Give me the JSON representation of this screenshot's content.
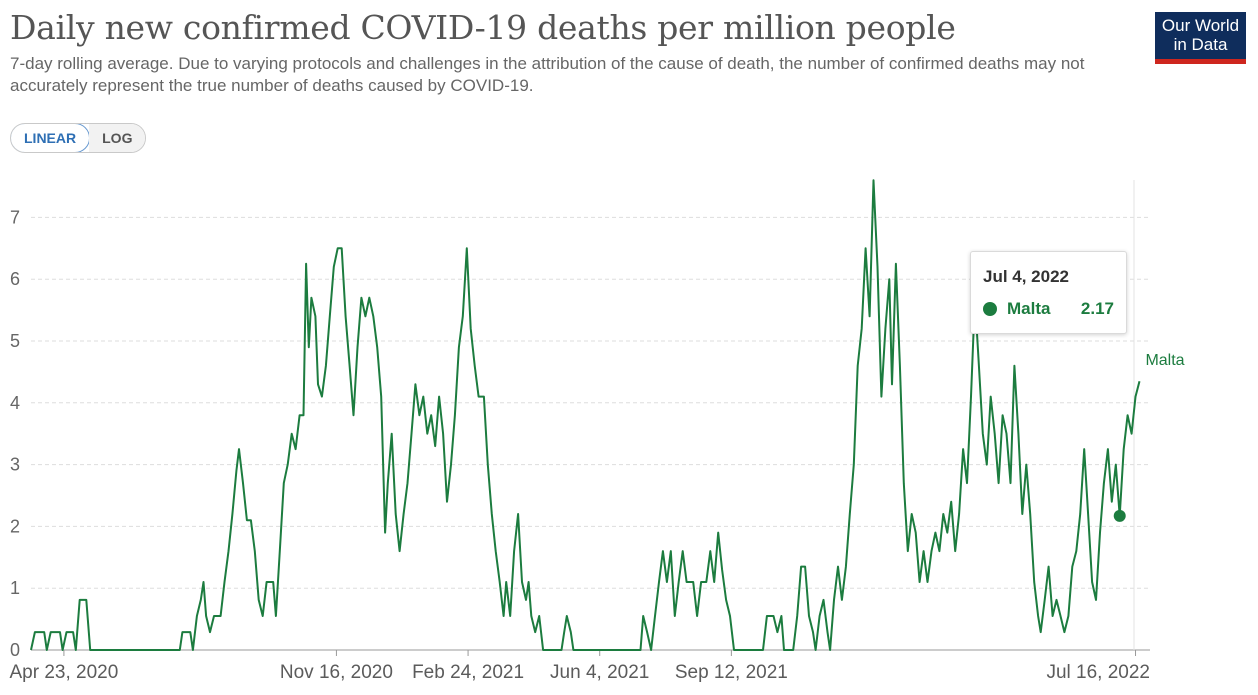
{
  "header": {
    "title": "Daily new confirmed COVID-19 deaths per million people",
    "subtitle": "7-day rolling average. Due to varying protocols and challenges in the attribution of the cause of death, the number of confirmed deaths may not accurately represent the true number of deaths caused by COVID-19.",
    "logo_line1": "Our World",
    "logo_line2": "in Data"
  },
  "scale_toggle": {
    "linear": "LINEAR",
    "log": "LOG",
    "selected": "LINEAR"
  },
  "colors": {
    "series": "#1c7c3f",
    "logo_bg": "#0f2d5c",
    "logo_accent": "#ce261e",
    "grid": "#dddddd"
  },
  "tooltip": {
    "date": "Jul 4, 2022",
    "entity": "Malta",
    "value": "2.17"
  },
  "chart_data": {
    "type": "line",
    "title": "Daily new confirmed COVID-19 deaths per million people",
    "xlabel": "",
    "ylabel": "",
    "xlim": [
      "2020-03-29",
      "2022-07-27"
    ],
    "ylim": [
      0,
      7.6
    ],
    "y_ticks": [
      0,
      1,
      2,
      3,
      4,
      5,
      6,
      7
    ],
    "x_ticks": [
      {
        "date": "2020-04-23",
        "label": "Apr 23, 2020"
      },
      {
        "date": "2020-11-16",
        "label": "Nov 16, 2020"
      },
      {
        "date": "2021-02-24",
        "label": "Feb 24, 2021"
      },
      {
        "date": "2021-06-04",
        "label": "Jun 4, 2021"
      },
      {
        "date": "2021-09-12",
        "label": "Sep 12, 2021"
      },
      {
        "date": "2022-07-16",
        "label": "Jul 16, 2022"
      }
    ],
    "grid": true,
    "legend": "inline-right",
    "highlight": {
      "date": "2022-07-04",
      "value": 2.17
    },
    "series": [
      {
        "name": "Malta",
        "points": [
          [
            "2020-03-29",
            0
          ],
          [
            "2020-04-01",
            0.29
          ],
          [
            "2020-04-08",
            0.29
          ],
          [
            "2020-04-10",
            0
          ],
          [
            "2020-04-13",
            0.29
          ],
          [
            "2020-04-20",
            0.29
          ],
          [
            "2020-04-22",
            0
          ],
          [
            "2020-04-25",
            0.29
          ],
          [
            "2020-04-30",
            0.29
          ],
          [
            "2020-05-02",
            0
          ],
          [
            "2020-05-05",
            0.81
          ],
          [
            "2020-05-10",
            0.81
          ],
          [
            "2020-05-13",
            0
          ],
          [
            "2020-07-20",
            0
          ],
          [
            "2020-07-22",
            0.29
          ],
          [
            "2020-07-28",
            0.29
          ],
          [
            "2020-07-30",
            0
          ],
          [
            "2020-08-02",
            0.55
          ],
          [
            "2020-08-05",
            0.81
          ],
          [
            "2020-08-07",
            1.1
          ],
          [
            "2020-08-09",
            0.55
          ],
          [
            "2020-08-12",
            0.29
          ],
          [
            "2020-08-15",
            0.55
          ],
          [
            "2020-08-20",
            0.55
          ],
          [
            "2020-08-23",
            1.1
          ],
          [
            "2020-08-26",
            1.6
          ],
          [
            "2020-08-29",
            2.2
          ],
          [
            "2020-09-01",
            2.9
          ],
          [
            "2020-09-03",
            3.25
          ],
          [
            "2020-09-06",
            2.7
          ],
          [
            "2020-09-09",
            2.1
          ],
          [
            "2020-09-12",
            2.1
          ],
          [
            "2020-09-15",
            1.6
          ],
          [
            "2020-09-18",
            0.81
          ],
          [
            "2020-09-21",
            0.55
          ],
          [
            "2020-09-24",
            1.1
          ],
          [
            "2020-09-29",
            1.1
          ],
          [
            "2020-10-01",
            0.55
          ],
          [
            "2020-10-04",
            1.6
          ],
          [
            "2020-10-07",
            2.7
          ],
          [
            "2020-10-10",
            3.0
          ],
          [
            "2020-10-13",
            3.5
          ],
          [
            "2020-10-16",
            3.25
          ],
          [
            "2020-10-19",
            3.8
          ],
          [
            "2020-10-22",
            3.8
          ],
          [
            "2020-10-24",
            6.25
          ],
          [
            "2020-10-26",
            4.9
          ],
          [
            "2020-10-28",
            5.7
          ],
          [
            "2020-10-31",
            5.4
          ],
          [
            "2020-11-02",
            4.3
          ],
          [
            "2020-11-05",
            4.1
          ],
          [
            "2020-11-08",
            4.6
          ],
          [
            "2020-11-11",
            5.4
          ],
          [
            "2020-11-14",
            6.2
          ],
          [
            "2020-11-17",
            6.5
          ],
          [
            "2020-11-20",
            6.5
          ],
          [
            "2020-11-23",
            5.4
          ],
          [
            "2020-11-26",
            4.6
          ],
          [
            "2020-11-29",
            3.8
          ],
          [
            "2020-12-02",
            4.9
          ],
          [
            "2020-12-05",
            5.7
          ],
          [
            "2020-12-08",
            5.4
          ],
          [
            "2020-12-11",
            5.7
          ],
          [
            "2020-12-14",
            5.4
          ],
          [
            "2020-12-17",
            4.9
          ],
          [
            "2020-12-20",
            4.1
          ],
          [
            "2020-12-23",
            1.9
          ],
          [
            "2020-12-25",
            2.7
          ],
          [
            "2020-12-28",
            3.5
          ],
          [
            "2020-12-31",
            2.2
          ],
          [
            "2021-01-03",
            1.6
          ],
          [
            "2021-01-06",
            2.2
          ],
          [
            "2021-01-09",
            2.7
          ],
          [
            "2021-01-12",
            3.5
          ],
          [
            "2021-01-15",
            4.3
          ],
          [
            "2021-01-18",
            3.8
          ],
          [
            "2021-01-21",
            4.1
          ],
          [
            "2021-01-24",
            3.5
          ],
          [
            "2021-01-27",
            3.8
          ],
          [
            "2021-01-30",
            3.3
          ],
          [
            "2021-02-02",
            4.1
          ],
          [
            "2021-02-05",
            3.5
          ],
          [
            "2021-02-08",
            2.4
          ],
          [
            "2021-02-11",
            3.0
          ],
          [
            "2021-02-14",
            3.8
          ],
          [
            "2021-02-17",
            4.9
          ],
          [
            "2021-02-20",
            5.4
          ],
          [
            "2021-02-23",
            6.5
          ],
          [
            "2021-02-26",
            5.2
          ],
          [
            "2021-03-01",
            4.6
          ],
          [
            "2021-03-04",
            4.1
          ],
          [
            "2021-03-08",
            4.1
          ],
          [
            "2021-03-11",
            3.0
          ],
          [
            "2021-03-14",
            2.2
          ],
          [
            "2021-03-17",
            1.6
          ],
          [
            "2021-03-20",
            1.1
          ],
          [
            "2021-03-23",
            0.55
          ],
          [
            "2021-03-25",
            1.1
          ],
          [
            "2021-03-28",
            0.55
          ],
          [
            "2021-03-31",
            1.6
          ],
          [
            "2021-04-03",
            2.2
          ],
          [
            "2021-04-06",
            1.1
          ],
          [
            "2021-04-09",
            0.81
          ],
          [
            "2021-04-11",
            1.1
          ],
          [
            "2021-04-13",
            0.55
          ],
          [
            "2021-04-16",
            0.29
          ],
          [
            "2021-04-19",
            0.55
          ],
          [
            "2021-04-22",
            0
          ],
          [
            "2021-05-06",
            0
          ],
          [
            "2021-05-08",
            0.29
          ],
          [
            "2021-05-10",
            0.55
          ],
          [
            "2021-05-13",
            0.29
          ],
          [
            "2021-05-15",
            0
          ],
          [
            "2021-07-05",
            0
          ],
          [
            "2021-07-07",
            0.55
          ],
          [
            "2021-07-10",
            0.29
          ],
          [
            "2021-07-13",
            0
          ],
          [
            "2021-07-16",
            0.55
          ],
          [
            "2021-07-19",
            1.1
          ],
          [
            "2021-07-22",
            1.6
          ],
          [
            "2021-07-25",
            1.1
          ],
          [
            "2021-07-28",
            1.6
          ],
          [
            "2021-07-31",
            0.55
          ],
          [
            "2021-08-03",
            1.1
          ],
          [
            "2021-08-06",
            1.6
          ],
          [
            "2021-08-09",
            1.1
          ],
          [
            "2021-08-14",
            1.1
          ],
          [
            "2021-08-17",
            0.55
          ],
          [
            "2021-08-20",
            1.1
          ],
          [
            "2021-08-24",
            1.1
          ],
          [
            "2021-08-27",
            1.6
          ],
          [
            "2021-08-30",
            1.1
          ],
          [
            "2021-09-02",
            1.9
          ],
          [
            "2021-09-05",
            1.3
          ],
          [
            "2021-09-08",
            0.81
          ],
          [
            "2021-09-11",
            0.55
          ],
          [
            "2021-09-14",
            0
          ],
          [
            "2021-10-06",
            0
          ],
          [
            "2021-10-09",
            0.55
          ],
          [
            "2021-10-14",
            0.55
          ],
          [
            "2021-10-17",
            0.29
          ],
          [
            "2021-10-20",
            0.55
          ],
          [
            "2021-10-22",
            0
          ],
          [
            "2021-10-29",
            0
          ],
          [
            "2021-11-01",
            0.55
          ],
          [
            "2021-11-04",
            1.35
          ],
          [
            "2021-11-07",
            1.35
          ],
          [
            "2021-11-10",
            0.55
          ],
          [
            "2021-11-13",
            0.29
          ],
          [
            "2021-11-15",
            0
          ],
          [
            "2021-11-18",
            0.55
          ],
          [
            "2021-11-21",
            0.81
          ],
          [
            "2021-11-24",
            0.29
          ],
          [
            "2021-11-26",
            0
          ],
          [
            "2021-11-29",
            0.81
          ],
          [
            "2021-12-02",
            1.35
          ],
          [
            "2021-12-05",
            0.81
          ],
          [
            "2021-12-08",
            1.35
          ],
          [
            "2021-12-11",
            2.2
          ],
          [
            "2021-12-14",
            3.0
          ],
          [
            "2021-12-17",
            4.6
          ],
          [
            "2021-12-20",
            5.2
          ],
          [
            "2021-12-23",
            6.5
          ],
          [
            "2021-12-26",
            5.4
          ],
          [
            "2021-12-29",
            7.6
          ],
          [
            "2022-01-01",
            6.2
          ],
          [
            "2022-01-04",
            4.1
          ],
          [
            "2022-01-07",
            5.2
          ],
          [
            "2022-01-10",
            6.0
          ],
          [
            "2022-01-12",
            4.3
          ],
          [
            "2022-01-15",
            6.25
          ],
          [
            "2022-01-18",
            4.6
          ],
          [
            "2022-01-21",
            2.7
          ],
          [
            "2022-01-24",
            1.6
          ],
          [
            "2022-01-27",
            2.2
          ],
          [
            "2022-01-30",
            1.9
          ],
          [
            "2022-02-02",
            1.1
          ],
          [
            "2022-02-05",
            1.6
          ],
          [
            "2022-02-08",
            1.1
          ],
          [
            "2022-02-11",
            1.6
          ],
          [
            "2022-02-14",
            1.9
          ],
          [
            "2022-02-17",
            1.6
          ],
          [
            "2022-02-20",
            2.2
          ],
          [
            "2022-02-23",
            1.9
          ],
          [
            "2022-02-26",
            2.4
          ],
          [
            "2022-03-01",
            1.6
          ],
          [
            "2022-03-04",
            2.2
          ],
          [
            "2022-03-07",
            3.25
          ],
          [
            "2022-03-10",
            2.7
          ],
          [
            "2022-03-13",
            4.1
          ],
          [
            "2022-03-16",
            5.7
          ],
          [
            "2022-03-19",
            4.6
          ],
          [
            "2022-03-22",
            3.5
          ],
          [
            "2022-03-25",
            3.0
          ],
          [
            "2022-03-28",
            4.1
          ],
          [
            "2022-03-31",
            3.5
          ],
          [
            "2022-04-03",
            2.7
          ],
          [
            "2022-04-06",
            3.8
          ],
          [
            "2022-04-09",
            3.5
          ],
          [
            "2022-04-12",
            2.7
          ],
          [
            "2022-04-15",
            4.6
          ],
          [
            "2022-04-18",
            3.5
          ],
          [
            "2022-04-21",
            2.2
          ],
          [
            "2022-04-24",
            3.0
          ],
          [
            "2022-04-27",
            2.2
          ],
          [
            "2022-04-30",
            1.1
          ],
          [
            "2022-05-03",
            0.55
          ],
          [
            "2022-05-05",
            0.29
          ],
          [
            "2022-05-08",
            0.81
          ],
          [
            "2022-05-11",
            1.35
          ],
          [
            "2022-05-14",
            0.55
          ],
          [
            "2022-05-17",
            0.81
          ],
          [
            "2022-05-20",
            0.55
          ],
          [
            "2022-05-23",
            0.29
          ],
          [
            "2022-05-26",
            0.55
          ],
          [
            "2022-05-29",
            1.35
          ],
          [
            "2022-06-01",
            1.6
          ],
          [
            "2022-06-04",
            2.2
          ],
          [
            "2022-06-07",
            3.25
          ],
          [
            "2022-06-10",
            2.2
          ],
          [
            "2022-06-13",
            1.1
          ],
          [
            "2022-06-16",
            0.81
          ],
          [
            "2022-06-19",
            1.9
          ],
          [
            "2022-06-22",
            2.7
          ],
          [
            "2022-06-25",
            3.25
          ],
          [
            "2022-06-28",
            2.4
          ],
          [
            "2022-07-01",
            3.0
          ],
          [
            "2022-07-04",
            2.17
          ],
          [
            "2022-07-07",
            3.25
          ],
          [
            "2022-07-10",
            3.8
          ],
          [
            "2022-07-13",
            3.5
          ],
          [
            "2022-07-16",
            4.1
          ],
          [
            "2022-07-19",
            4.35
          ]
        ]
      }
    ]
  }
}
